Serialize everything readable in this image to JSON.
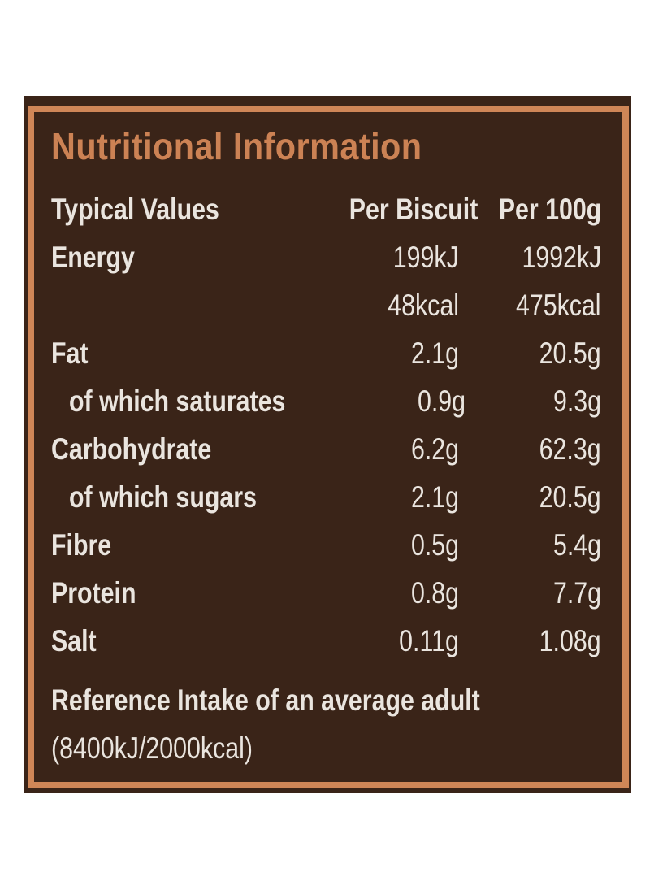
{
  "panel": {
    "title": "Nutritional Information",
    "colors": {
      "page_background": "#ffffff",
      "panel_background": "#3a2418",
      "border_copper": "#cf8657",
      "title_copper": "#cc8254",
      "text_offwhite": "#eae5df"
    },
    "table": {
      "headers": [
        "Typical Values",
        "Per Biscuit",
        "Per 100g"
      ],
      "rows": [
        {
          "label": "Energy",
          "per_biscuit": "199kJ",
          "per_100g": "1992kJ",
          "indent": false
        },
        {
          "label": "",
          "per_biscuit": "48kcal",
          "per_100g": "475kcal",
          "indent": false
        },
        {
          "label": "Fat",
          "per_biscuit": "2.1g",
          "per_100g": "20.5g",
          "indent": false
        },
        {
          "label": "of which saturates",
          "per_biscuit": "0.9g",
          "per_100g": "9.3g",
          "indent": true
        },
        {
          "label": "Carbohydrate",
          "per_biscuit": "6.2g",
          "per_100g": "62.3g",
          "indent": false
        },
        {
          "label": "of which sugars",
          "per_biscuit": "2.1g",
          "per_100g": "20.5g",
          "indent": true
        },
        {
          "label": "Fibre",
          "per_biscuit": "0.5g",
          "per_100g": "5.4g",
          "indent": false
        },
        {
          "label": "Protein",
          "per_biscuit": "0.8g",
          "per_100g": "7.7g",
          "indent": false
        },
        {
          "label": "Salt",
          "per_biscuit": "0.11g",
          "per_100g": "1.08g",
          "indent": false
        }
      ]
    },
    "footer": {
      "line1": "Reference Intake of an average adult",
      "line2": "(8400kJ/2000kcal)"
    }
  }
}
